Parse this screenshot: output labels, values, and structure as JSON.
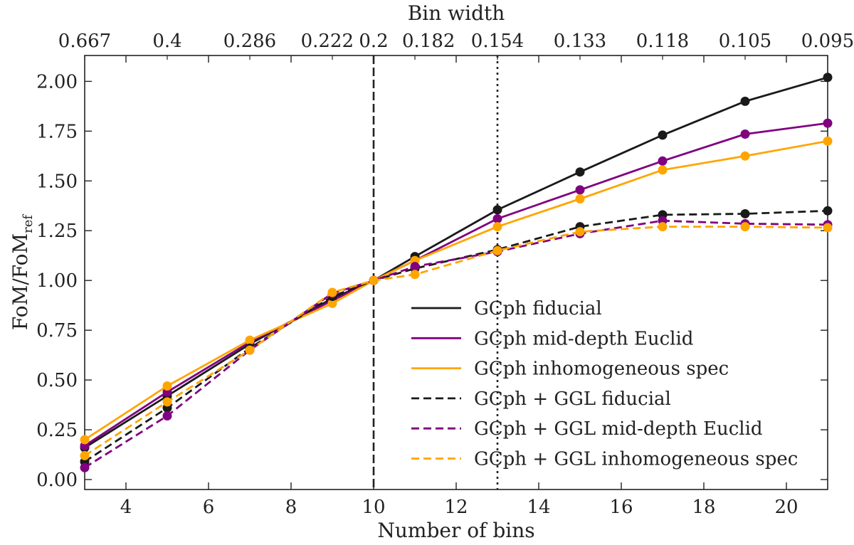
{
  "chart_data": {
    "type": "line",
    "x_label": "Number of bins",
    "y_label_main": "FoM/FoM",
    "y_label_sub": "ref",
    "top_label": "Bin width",
    "xlim": [
      3,
      21
    ],
    "ylim": [
      -0.05,
      2.13
    ],
    "x_ticks": [
      4,
      6,
      8,
      10,
      12,
      14,
      16,
      18,
      20
    ],
    "y_ticks": [
      "0.00",
      "0.25",
      "0.50",
      "0.75",
      "1.00",
      "1.25",
      "1.50",
      "1.75",
      "2.00"
    ],
    "top_ticks": [
      {
        "x": 3,
        "label": "0.667"
      },
      {
        "x": 5,
        "label": "0.4"
      },
      {
        "x": 7,
        "label": "0.286"
      },
      {
        "x": 9,
        "label": "0.222"
      },
      {
        "x": 10,
        "label": "0.2"
      },
      {
        "x": 11,
        "label": "0.182"
      },
      {
        "x": 13,
        "label": "0.154"
      },
      {
        "x": 15,
        "label": "0.133"
      },
      {
        "x": 17,
        "label": "0.118"
      },
      {
        "x": 19,
        "label": "0.105"
      },
      {
        "x": 21,
        "label": "0.095"
      }
    ],
    "vlines": [
      {
        "x": 10,
        "style": "dashed"
      },
      {
        "x": 13,
        "style": "dotted"
      }
    ],
    "x": [
      3,
      5,
      7,
      9,
      10,
      11,
      13,
      15,
      17,
      19,
      21
    ],
    "series": [
      {
        "name": "GCph fiducial",
        "color": "#1a1a1a",
        "style": "solid",
        "values": [
          0.16,
          0.42,
          0.68,
          0.91,
          1.0,
          1.12,
          1.355,
          1.545,
          1.73,
          1.9,
          2.02
        ]
      },
      {
        "name": "GCph mid-depth Euclid",
        "color": "#800080",
        "style": "solid",
        "values": [
          0.17,
          0.44,
          0.69,
          0.9,
          1.0,
          1.1,
          1.31,
          1.455,
          1.6,
          1.735,
          1.79
        ]
      },
      {
        "name": "GCph inhomogeneous spec",
        "color": "#ffa500",
        "style": "solid",
        "values": [
          0.2,
          0.47,
          0.7,
          0.885,
          1.0,
          1.1,
          1.27,
          1.41,
          1.555,
          1.625,
          1.7
        ]
      },
      {
        "name": "GCph + GGL fiducial",
        "color": "#1a1a1a",
        "style": "dashed",
        "values": [
          0.09,
          0.36,
          0.66,
          0.92,
          1.0,
          1.06,
          1.155,
          1.27,
          1.33,
          1.335,
          1.35
        ]
      },
      {
        "name": "GCph + GGL mid-depth Euclid",
        "color": "#800080",
        "style": "dashed",
        "values": [
          0.06,
          0.32,
          0.65,
          0.935,
          1.0,
          1.07,
          1.145,
          1.235,
          1.3,
          1.285,
          1.28
        ]
      },
      {
        "name": "GCph + GGL inhomogeneous spec",
        "color": "#ffa500",
        "style": "dashed",
        "values": [
          0.12,
          0.39,
          0.65,
          0.94,
          1.0,
          1.03,
          1.15,
          1.245,
          1.27,
          1.27,
          1.265
        ]
      }
    ],
    "legend_position": "lower-right"
  }
}
